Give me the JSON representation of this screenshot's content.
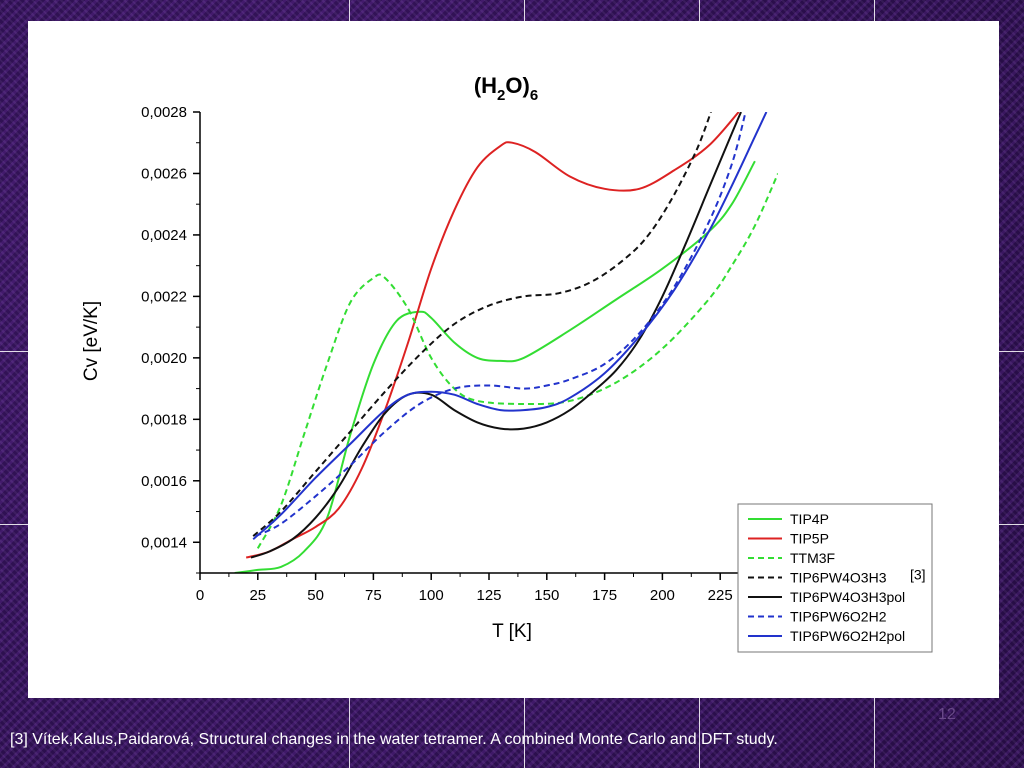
{
  "background": {
    "base_color": "#3a1660"
  },
  "slide": {
    "page_number": "12",
    "footnote": "[3] Vítek,Kalus,Paidarová, Structural changes in the water tetramer. A combined Monte Carlo and DFT study."
  },
  "chart_data": {
    "type": "line",
    "title": {
      "main": "(H",
      "sub1": "2",
      "mid": "O)",
      "sub2": "6"
    },
    "xlabel": "T [K]",
    "ylabel": "Cv [eV/K]",
    "xlim": [
      0,
      250
    ],
    "ylim": [
      0.0013,
      0.0028
    ],
    "xticks": [
      {
        "value": 0,
        "label": "0"
      },
      {
        "value": 25,
        "label": "25"
      },
      {
        "value": 50,
        "label": "50"
      },
      {
        "value": 75,
        "label": "75"
      },
      {
        "value": 100,
        "label": "100"
      },
      {
        "value": 125,
        "label": "125"
      },
      {
        "value": 150,
        "label": "150"
      },
      {
        "value": 175,
        "label": "175"
      },
      {
        "value": 200,
        "label": "200"
      },
      {
        "value": 225,
        "label": "225"
      }
    ],
    "yticks": [
      {
        "value": 0.0014,
        "label": "0,0014"
      },
      {
        "value": 0.0016,
        "label": "0,0016"
      },
      {
        "value": 0.0018,
        "label": "0,0018"
      },
      {
        "value": 0.002,
        "label": "0,0020"
      },
      {
        "value": 0.0022,
        "label": "0,0022"
      },
      {
        "value": 0.0024,
        "label": "0,0024"
      },
      {
        "value": 0.0026,
        "label": "0,0026"
      },
      {
        "value": 0.0028,
        "label": "0,0028"
      }
    ],
    "grid": false,
    "legend_position": "bottom-right",
    "legend_annotation": "[3]",
    "series": [
      {
        "name": "TIP4P",
        "color": "#33dd33",
        "dash": "solid",
        "x": [
          15,
          25,
          35,
          45,
          55,
          65,
          75,
          85,
          95,
          100,
          110,
          120,
          130,
          140,
          160,
          180,
          200,
          220,
          230,
          240
        ],
        "y": [
          0.0013,
          0.00131,
          0.00132,
          0.00137,
          0.00148,
          0.00175,
          0.00198,
          0.00212,
          0.00215,
          0.00213,
          0.00205,
          0.002,
          0.00199,
          0.002,
          0.00209,
          0.00219,
          0.00229,
          0.00241,
          0.0025,
          0.00264
        ]
      },
      {
        "name": "TIP5P",
        "color": "#dd2222",
        "dash": "solid",
        "x": [
          20,
          30,
          40,
          50,
          60,
          70,
          80,
          90,
          100,
          110,
          120,
          130,
          135,
          145,
          160,
          175,
          190,
          205,
          220,
          233
        ],
        "y": [
          0.00135,
          0.00137,
          0.00141,
          0.00145,
          0.00151,
          0.00164,
          0.00183,
          0.00205,
          0.00229,
          0.00248,
          0.00262,
          0.00269,
          0.0027,
          0.00267,
          0.00259,
          0.00255,
          0.00255,
          0.00261,
          0.00269,
          0.0028
        ]
      },
      {
        "name": "TTM3F",
        "color": "#33dd33",
        "dash": "dashed",
        "x": [
          25,
          35,
          45,
          55,
          65,
          75,
          80,
          90,
          100,
          110,
          120,
          140,
          160,
          180,
          200,
          220,
          230,
          240,
          250
        ],
        "y": [
          0.00138,
          0.00152,
          0.00175,
          0.00198,
          0.00218,
          0.00226,
          0.00226,
          0.00216,
          0.002,
          0.0019,
          0.00186,
          0.00185,
          0.00186,
          0.00192,
          0.00203,
          0.00219,
          0.0023,
          0.00243,
          0.0026
        ]
      },
      {
        "name": "TIP6PW4O3H3",
        "color": "#111111",
        "dash": "dashed",
        "x": [
          23,
          35,
          50,
          65,
          80,
          95,
          110,
          125,
          140,
          155,
          170,
          185,
          195,
          205,
          215,
          221
        ],
        "y": [
          0.00142,
          0.0015,
          0.00163,
          0.00176,
          0.00189,
          0.00201,
          0.00211,
          0.00217,
          0.0022,
          0.00221,
          0.00225,
          0.00233,
          0.00241,
          0.00253,
          0.00268,
          0.0028
        ]
      },
      {
        "name": "TIP6PW4O3H3pol",
        "color": "#111111",
        "dash": "solid",
        "x": [
          22,
          30,
          40,
          50,
          60,
          70,
          80,
          90,
          100,
          110,
          120,
          130,
          140,
          150,
          160,
          170,
          180,
          190,
          200,
          210,
          220,
          230,
          234
        ],
        "y": [
          0.00135,
          0.00137,
          0.00141,
          0.00148,
          0.00158,
          0.00171,
          0.00182,
          0.00188,
          0.00188,
          0.00183,
          0.00179,
          0.00177,
          0.00177,
          0.00179,
          0.00183,
          0.00189,
          0.00196,
          0.00206,
          0.0022,
          0.00237,
          0.00255,
          0.00273,
          0.0028
        ]
      },
      {
        "name": "TIP6PW6O2H2",
        "color": "#2233cc",
        "dash": "dashed",
        "x": [
          24,
          35,
          50,
          65,
          80,
          95,
          110,
          125,
          140,
          150,
          160,
          175,
          190,
          205,
          220,
          230,
          236
        ],
        "y": [
          0.00142,
          0.00146,
          0.00155,
          0.00165,
          0.00176,
          0.00185,
          0.0019,
          0.00191,
          0.0019,
          0.00191,
          0.00193,
          0.00198,
          0.00208,
          0.00223,
          0.00244,
          0.00263,
          0.0028
        ]
      },
      {
        "name": "TIP6PW6O2H2pol",
        "color": "#2233cc",
        "dash": "solid",
        "x": [
          23,
          35,
          50,
          65,
          80,
          90,
          100,
          110,
          120,
          130,
          140,
          150,
          160,
          175,
          190,
          205,
          220,
          230,
          240,
          245
        ],
        "y": [
          0.00141,
          0.00149,
          0.00161,
          0.00172,
          0.00183,
          0.00188,
          0.00189,
          0.00188,
          0.00185,
          0.00183,
          0.00183,
          0.00184,
          0.00187,
          0.00195,
          0.00207,
          0.00222,
          0.00241,
          0.00256,
          0.00272,
          0.0028
        ]
      }
    ]
  }
}
